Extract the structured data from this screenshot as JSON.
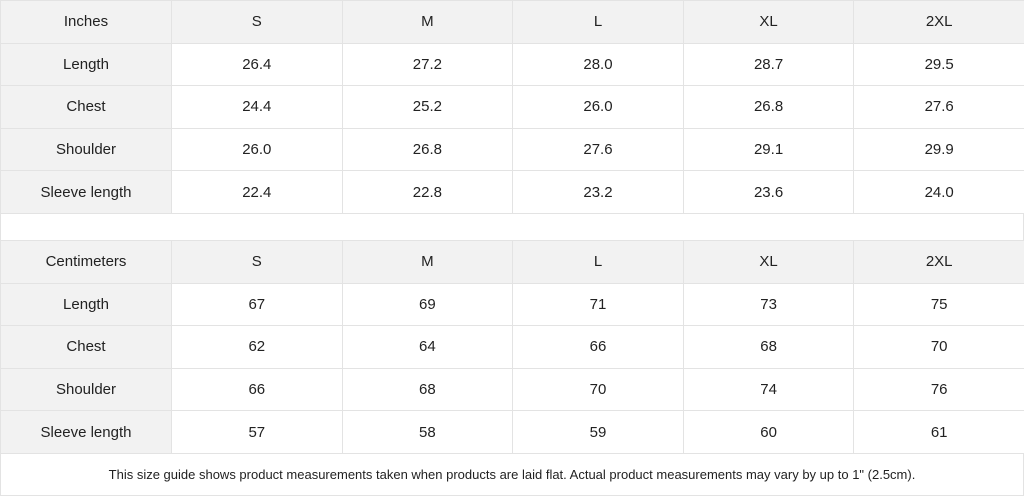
{
  "inches": {
    "header": [
      "Inches",
      "S",
      "M",
      "L",
      "XL",
      "2XL"
    ],
    "rows": [
      [
        "Length",
        "26.4",
        "27.2",
        "28.0",
        "28.7",
        "29.5"
      ],
      [
        "Chest",
        "24.4",
        "25.2",
        "26.0",
        "26.8",
        "27.6"
      ],
      [
        "Shoulder",
        "26.0",
        "26.8",
        "27.6",
        "29.1",
        "29.9"
      ],
      [
        "Sleeve length",
        "22.4",
        "22.8",
        "23.2",
        "23.6",
        "24.0"
      ]
    ]
  },
  "centimeters": {
    "header": [
      "Centimeters",
      "S",
      "M",
      "L",
      "XL",
      "2XL"
    ],
    "rows": [
      [
        "Length",
        "67",
        "69",
        "71",
        "73",
        "75"
      ],
      [
        "Chest",
        "62",
        "64",
        "66",
        "68",
        "70"
      ],
      [
        "Shoulder",
        "66",
        "68",
        "70",
        "74",
        "76"
      ],
      [
        "Sleeve length",
        "57",
        "58",
        "59",
        "60",
        "61"
      ]
    ]
  },
  "note": "This size guide shows product measurements taken when products are laid flat.  Actual product measurements may vary by up to 1\" (2.5cm).",
  "colors": {
    "header_bg": "#f2f2f2",
    "border": "#e3e3e3",
    "text": "#222222"
  }
}
